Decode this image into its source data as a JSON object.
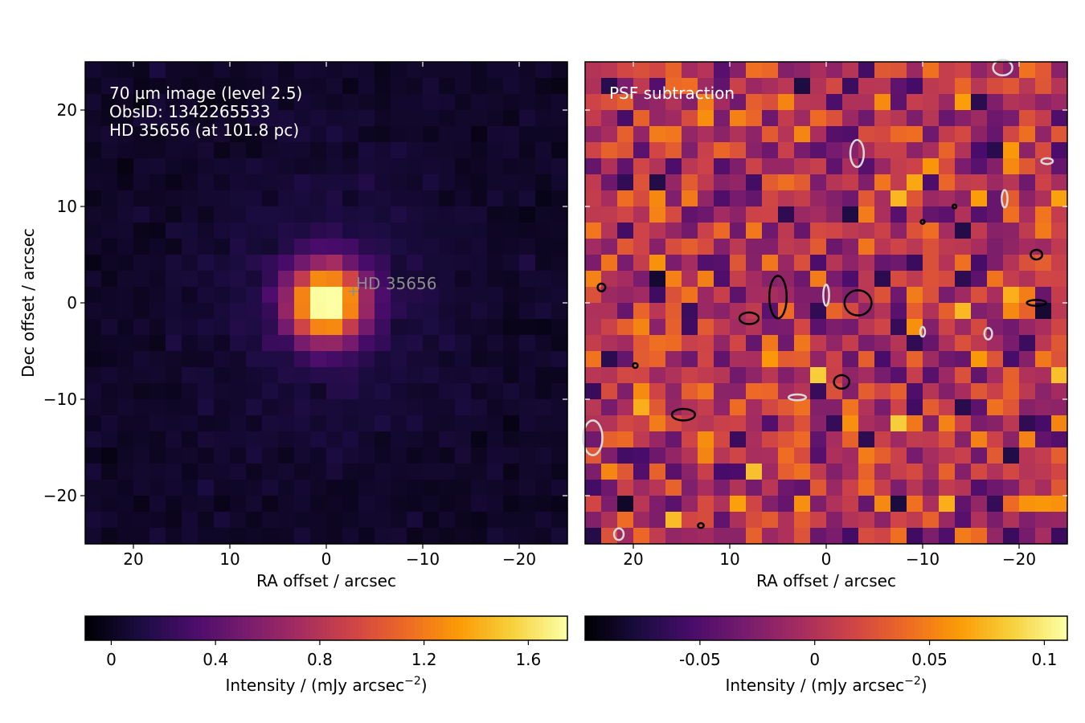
{
  "figure": {
    "ylabel": "Dec offset / arcsec",
    "colormap_stops": [
      "#000004",
      "#1b0c41",
      "#4a0c6b",
      "#781c6d",
      "#a52c60",
      "#cf4446",
      "#ed6925",
      "#fb9b06",
      "#f7d13d",
      "#fcffa4"
    ]
  },
  "chart_data": [
    {
      "type": "heatmap",
      "panel": "left",
      "annotation_lines": [
        "70 µm image (level 2.5)",
        "ObsID: 1342265533",
        "HD 35656 (at 101.8 pc)"
      ],
      "source_marker": {
        "label": "HD  35656",
        "x": -2.8,
        "y": 1.2
      },
      "xlabel": "RA offset / arcsec",
      "xlim": [
        25,
        -25
      ],
      "ylim": [
        -25,
        25
      ],
      "xticks": [
        20,
        10,
        0,
        -10,
        -20
      ],
      "yticks": [
        20,
        10,
        0,
        -10,
        -20
      ],
      "grid": false,
      "pixel_grid": 30,
      "source_model": {
        "peak": 1.75,
        "center_x": 0,
        "center_y": 0,
        "sigma_arcsec": 2.7,
        "noise_level": 0.08,
        "extended_halo": 0.15
      },
      "colorbar": {
        "label": "Intensity / (mJy arcsec",
        "label_exponent": "−2",
        "label_close": ")",
        "vmin": -0.1,
        "vmax": 1.75,
        "ticks": [
          0,
          0.4,
          0.8,
          1.2,
          1.6
        ],
        "tick_labels": [
          "0",
          "0.4",
          "0.8",
          "1.2",
          "1.6"
        ]
      }
    },
    {
      "type": "heatmap",
      "panel": "right",
      "title": "PSF subtraction",
      "xlabel": "RA offset / arcsec",
      "xlim": [
        25,
        -25
      ],
      "ylim": [
        -25,
        25
      ],
      "xticks": [
        20,
        10,
        0,
        -10,
        -20
      ],
      "yticks": [
        20,
        10,
        0,
        -10,
        -20
      ],
      "grid": false,
      "pixel_grid": 30,
      "residual_model": {
        "mean": 0.0,
        "spread": 0.045
      },
      "contours": {
        "positive_color": "#000000",
        "negative_color": "#d9d9d9",
        "positive": [
          {
            "x": 5.0,
            "y": 0.6,
            "rx": 0.9,
            "ry": 2.2
          },
          {
            "x": -3.3,
            "y": 0.0,
            "rx": 1.4,
            "ry": 1.3
          },
          {
            "x": 8.0,
            "y": -1.6,
            "rx": 1.0,
            "ry": 0.6
          },
          {
            "x": 14.8,
            "y": -11.6,
            "rx": 1.2,
            "ry": 0.6
          },
          {
            "x": -1.6,
            "y": -8.2,
            "rx": 0.8,
            "ry": 0.7
          },
          {
            "x": -21.8,
            "y": 5.0,
            "rx": 0.6,
            "ry": 0.5
          },
          {
            "x": -21.8,
            "y": 0.0,
            "rx": 1.0,
            "ry": 0.3
          },
          {
            "x": 23.3,
            "y": 1.6,
            "rx": 0.4,
            "ry": 0.4
          },
          {
            "x": 19.8,
            "y": -6.5,
            "rx": 0.25,
            "ry": 0.25
          },
          {
            "x": 13.0,
            "y": -23.1,
            "rx": 0.3,
            "ry": 0.25
          },
          {
            "x": -10.0,
            "y": 8.4,
            "rx": 0.2,
            "ry": 0.2
          },
          {
            "x": -13.3,
            "y": 10.0,
            "rx": 0.2,
            "ry": 0.2
          }
        ],
        "negative": [
          {
            "x": -3.2,
            "y": 15.5,
            "rx": 0.7,
            "ry": 1.4
          },
          {
            "x": -18.5,
            "y": 10.8,
            "rx": 0.3,
            "ry": 0.9
          },
          {
            "x": 0.0,
            "y": 0.8,
            "rx": 0.3,
            "ry": 1.1
          },
          {
            "x": -10.0,
            "y": -3.0,
            "rx": 0.25,
            "ry": 0.5
          },
          {
            "x": -16.8,
            "y": -3.2,
            "rx": 0.4,
            "ry": 0.6
          },
          {
            "x": 3.0,
            "y": -9.8,
            "rx": 0.9,
            "ry": 0.3
          },
          {
            "x": 24.2,
            "y": -14.0,
            "rx": 1.0,
            "ry": 1.8
          },
          {
            "x": -22.9,
            "y": 14.7,
            "rx": 0.6,
            "ry": 0.3
          },
          {
            "x": -18.3,
            "y": 24.4,
            "rx": 1.0,
            "ry": 0.8
          },
          {
            "x": 21.5,
            "y": -24.0,
            "rx": 0.5,
            "ry": 0.6
          }
        ]
      },
      "colorbar": {
        "label": "Intensity / (mJy arcsec",
        "label_exponent": "−2",
        "label_close": ")",
        "vmin": -0.1,
        "vmax": 0.11,
        "ticks": [
          -0.05,
          0,
          0.05,
          0.1
        ],
        "tick_labels": [
          "-0.05",
          "0",
          "0.05",
          "0.1"
        ]
      }
    }
  ]
}
